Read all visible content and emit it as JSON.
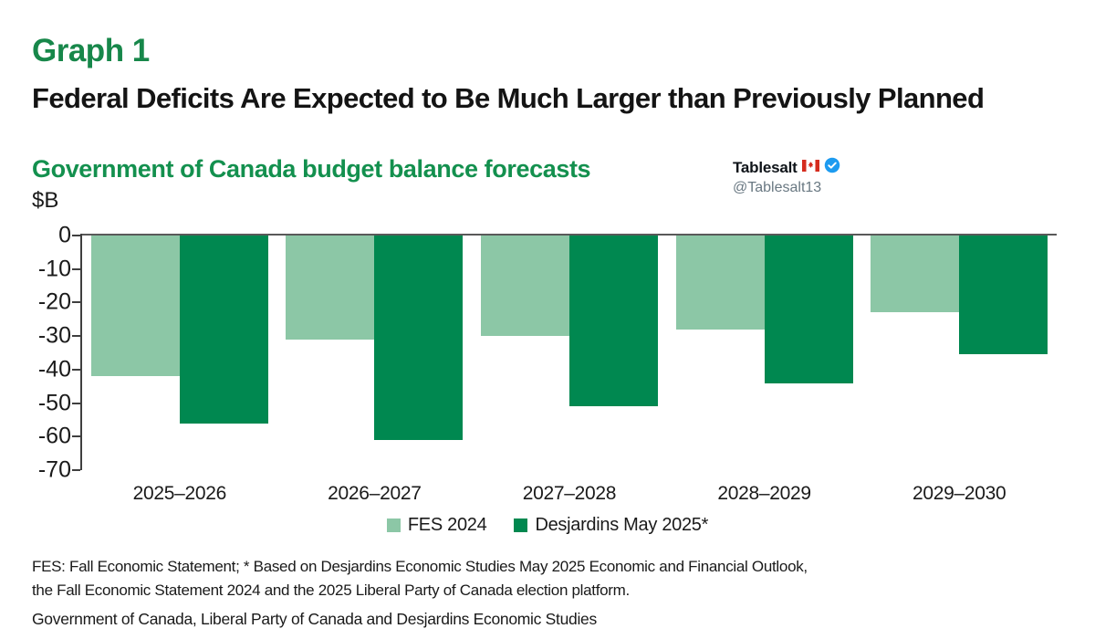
{
  "header": {
    "graph_label": "Graph 1",
    "title": "Federal Deficits Are Expected to Be Much Larger than Previously Planned",
    "subtitle": "Government of Canada budget balance forecasts"
  },
  "twitter": {
    "name": "Tablesalt",
    "handle": "@Tablesalt13",
    "flag_icon": "canada-flag",
    "verified_icon": "verified-badge",
    "verified_color": "#1d9bf0"
  },
  "chart_data": {
    "type": "bar",
    "title": "Government of Canada budget balance forecasts",
    "units_label": "$B",
    "xlabel": "",
    "ylabel": "$B",
    "categories": [
      "2025–2026",
      "2026–2027",
      "2027–2028",
      "2028–2029",
      "2029–2030"
    ],
    "series": [
      {
        "name": "FES 2024",
        "color": "#8cc7a6",
        "values": [
          -42,
          -31,
          -30,
          -28,
          -23
        ]
      },
      {
        "name": "Desjardins May 2025*",
        "color": "#008850",
        "values": [
          -56,
          -61,
          -51,
          -44,
          -35.5
        ]
      }
    ],
    "ylim": [
      -70,
      0
    ],
    "yticks": [
      0,
      -10,
      -20,
      -30,
      -40,
      -50,
      -60,
      -70
    ],
    "grid": false,
    "legend_position": "bottom"
  },
  "footnotes": {
    "definition": "FES: Fall Economic Statement; * Based on Desjardins Economic Studies May 2025 Economic and Financial Outlook, the Fall Economic Statement 2024 and the 2025 Liberal Party of Canada election platform.",
    "source": "Government of Canada, Liberal Party of Canada and Desjardins Economic Studies"
  },
  "colors": {
    "heading_green": "#17874a",
    "subtitle_green": "#13904e",
    "fes_green": "#8cc7a6",
    "desjardins_green": "#008850",
    "axis_gray": "#595959",
    "verified_blue": "#1d9bf0"
  }
}
